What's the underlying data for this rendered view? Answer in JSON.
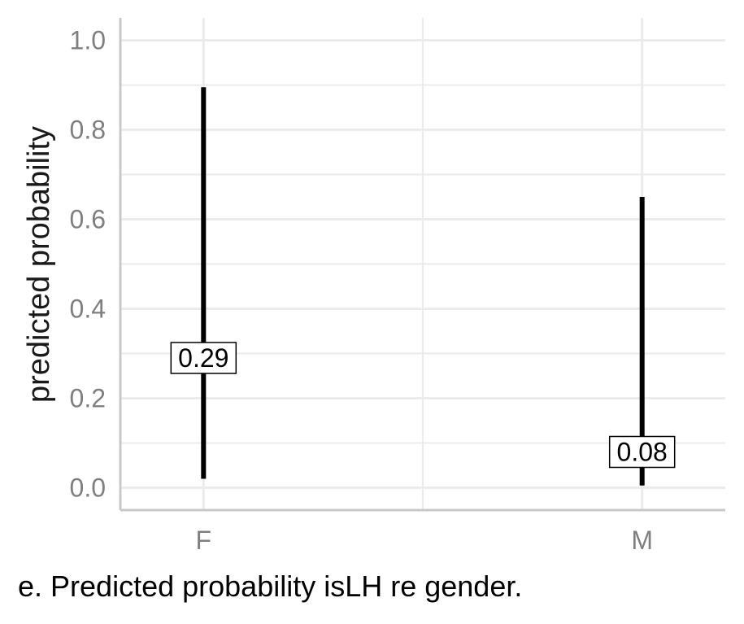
{
  "chart_data": {
    "type": "errorbar",
    "categories": [
      "F",
      "M"
    ],
    "series": [
      {
        "values": [
          0.29,
          0.08
        ],
        "lower": [
          0.02,
          0.005
        ],
        "upper": [
          0.895,
          0.65
        ],
        "labels": [
          "0.29",
          "0.08"
        ]
      }
    ],
    "xlabel": "",
    "ylabel": "predicted probability",
    "ylim": [
      -0.05,
      1.05
    ],
    "yticks": [
      0.0,
      0.2,
      0.4,
      0.6,
      0.8,
      1.0
    ],
    "ytick_labels": [
      "0.0",
      "0.2",
      "0.4",
      "0.6",
      "0.8",
      "1.0"
    ],
    "grid": true,
    "colors": {
      "grid": "#ebebeb",
      "axis": "#c8c8c8",
      "bar": "#000000",
      "tick_text": "#7f7f7f"
    }
  },
  "caption": "e. Predicted probability isLH re gender."
}
